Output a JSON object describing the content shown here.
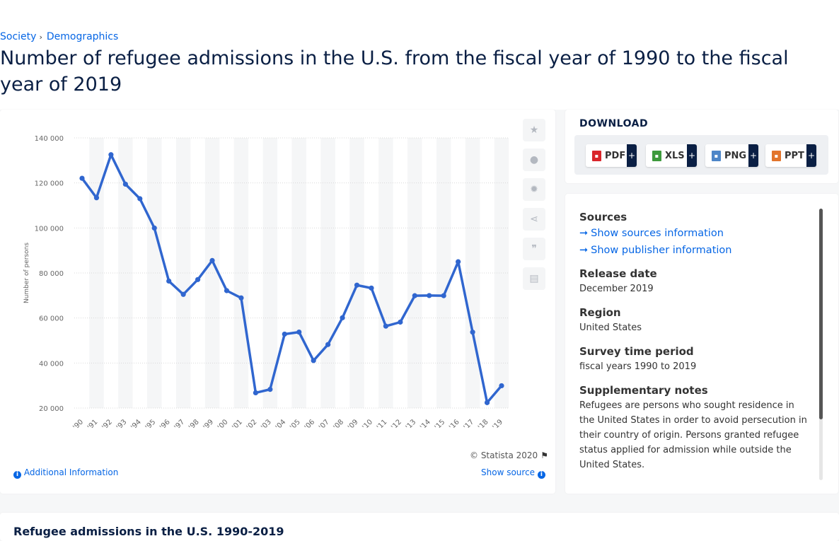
{
  "breadcrumb": {
    "level1": "Society",
    "level2": "Demographics"
  },
  "page_title": "Number of refugee admissions in the U.S. from the fiscal year of 1990 to the fiscal year of 2019",
  "chart": {
    "copyright": "© Statista 2020",
    "additional_info": "Additional Information",
    "show_source": "Show source"
  },
  "download": {
    "title": "DOWNLOAD",
    "buttons": [
      {
        "label": "PDF",
        "color": "#d9262b"
      },
      {
        "label": "XLS",
        "color": "#3d9a3c"
      },
      {
        "label": "PNG",
        "color": "#4d86c8"
      },
      {
        "label": "PPT",
        "color": "#e2742b"
      }
    ]
  },
  "info": {
    "sources_heading": "Sources",
    "show_sources": "Show sources information",
    "show_publisher": "Show publisher information",
    "release_heading": "Release date",
    "release_value": "December 2019",
    "region_heading": "Region",
    "region_value": "United States",
    "survey_heading": "Survey time period",
    "survey_value": "fiscal years 1990 to 2019",
    "notes_heading": "Supplementary notes",
    "notes_value": "Refugees are persons who sought residence in the United States in order to avoid persecution in their country of origin. Persons granted refugee status applied for admission while outside the United States."
  },
  "bottom_title": "Refugee admissions in the U.S. 1990-2019",
  "chart_data": {
    "type": "line",
    "title": "",
    "xlabel": "",
    "ylabel": "Number of persons",
    "categories": [
      "'90",
      "'91",
      "'92",
      "'93",
      "'94",
      "'95",
      "'96",
      "'97",
      "'98",
      "'99",
      "'00",
      "'01",
      "'02",
      "'03",
      "'04",
      "'05",
      "'06",
      "'07",
      "'08",
      "'09",
      "'10",
      "'11",
      "'12",
      "'13",
      "'14",
      "'15",
      "'16",
      "'17",
      "'18",
      "'19"
    ],
    "series": [
      {
        "values": [
          122066,
          113389,
          132531,
          119448,
          112981,
          99974,
          76403,
          70488,
          77080,
          85525,
          72143,
          68920,
          26785,
          28286,
          52840,
          53738,
          41094,
          48218,
          60108,
          74602,
          73293,
          56384,
          58179,
          69909,
          69975,
          69920,
          84989,
          53716,
          22405,
          29916
        ],
        "color": "#3066cf"
      }
    ],
    "y_ticks": [
      20000,
      40000,
      60000,
      80000,
      100000,
      120000,
      140000
    ],
    "y_tick_labels": [
      "20 000",
      "40 000",
      "60 000",
      "80 000",
      "100 000",
      "120 000",
      "140 000"
    ],
    "ylim": [
      20000,
      140000
    ],
    "grid": true,
    "legend": "none"
  }
}
